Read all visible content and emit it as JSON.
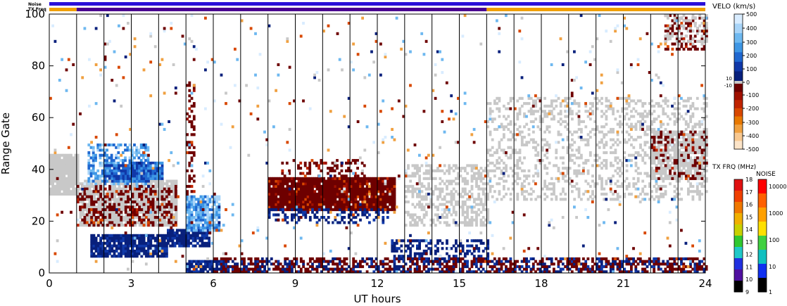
{
  "chart_data": {
    "type": "heatmap",
    "xlabel": "UT hours",
    "ylabel": "Range Gate",
    "xlim": [
      0,
      24
    ],
    "ylim": [
      0,
      100
    ],
    "x_ticks": [
      0,
      3,
      6,
      9,
      12,
      15,
      18,
      21,
      24
    ],
    "y_ticks": [
      0,
      20,
      40,
      60,
      80,
      100
    ],
    "hour_separator_lines": [
      1,
      2,
      3,
      4,
      5,
      6,
      7,
      8,
      9,
      10,
      11,
      12,
      13,
      14,
      15,
      16,
      17,
      18,
      19,
      20,
      21,
      22,
      23
    ],
    "top_bars": [
      {
        "name": "Noise",
        "segments": [
          {
            "start": 0,
            "end": 24,
            "color": "#2a10d8"
          }
        ]
      },
      {
        "name": "TX Freq",
        "segments": [
          {
            "start": 0,
            "end": 1,
            "color": "#f0a000"
          },
          {
            "start": 1,
            "end": 16,
            "color": "#4a0090"
          },
          {
            "start": 16,
            "end": 24,
            "color": "#f0a000"
          }
        ]
      }
    ],
    "velocity_scale": {
      "title": "VELO (km/s)",
      "labels": [
        "500",
        "400",
        "300",
        "200",
        "100",
        "0",
        "-100",
        "-200",
        "-300",
        "-400",
        "-500"
      ],
      "small_labels": [
        "10",
        "-10"
      ],
      "colors_positive": [
        "#d8ecff",
        "#a8d4f8",
        "#6eb8f0",
        "#3e96e4",
        "#2068d0",
        "#1038a8",
        "#08207c"
      ],
      "colors_negative": [
        "#6e0000",
        "#a01000",
        "#c02400",
        "#d84800",
        "#e87800",
        "#f0a040",
        "#f8c890",
        "#fce4c8"
      ],
      "ground_scatter_color": "#c8c8c8"
    },
    "frequency_scale": {
      "title": "TX FRQ (MHz)",
      "labels": [
        "18",
        "17",
        "16",
        "15",
        "14",
        "13",
        "12",
        "11",
        "10",
        "9"
      ],
      "colors": [
        "#e01010",
        "#f04000",
        "#f07800",
        "#f0b000",
        "#c8d000",
        "#30c830",
        "#20c8c8",
        "#2030e0",
        "#5010a0",
        "#000000"
      ]
    },
    "noise_scale": {
      "title": "NOISE",
      "labels": [
        "10000",
        "1000",
        "100",
        "10",
        "1"
      ],
      "colors": [
        "#ff0000",
        "#ff6000",
        "#ffa000",
        "#ffe000",
        "#40d040",
        "#10c0c0",
        "#1030f0",
        "#000000"
      ]
    },
    "regions": [
      {
        "type": "ground",
        "x": [
          0,
          1.0
        ],
        "gate": [
          30,
          46
        ],
        "density": 0.95
      },
      {
        "type": "ground",
        "x": [
          1.1,
          4.6
        ],
        "gate": [
          18,
          36
        ],
        "density": 0.85
      },
      {
        "type": "neg",
        "x": [
          1.0,
          4.6
        ],
        "gate": [
          18,
          34
        ],
        "density": 0.35
      },
      {
        "type": "pos",
        "x": [
          1.4,
          3.6
        ],
        "gate": [
          34,
          50
        ],
        "density": 0.55,
        "shade": "light"
      },
      {
        "type": "pos",
        "x": [
          2.0,
          3.6
        ],
        "gate": [
          35,
          42
        ],
        "density": 0.95,
        "shade": "mid"
      },
      {
        "type": "pos",
        "x": [
          1.5,
          4.3
        ],
        "gate": [
          6,
          15
        ],
        "density": 0.9,
        "shade": "dark"
      },
      {
        "type": "pos",
        "x": [
          4.3,
          5.8
        ],
        "gate": [
          10,
          17
        ],
        "density": 0.9,
        "shade": "dark"
      },
      {
        "type": "pos",
        "x": [
          5.0,
          6.2
        ],
        "gate": [
          16,
          30
        ],
        "density": 0.85,
        "shade": "light"
      },
      {
        "type": "pos",
        "x": [
          3.0,
          4.1
        ],
        "gate": [
          36,
          43
        ],
        "density": 0.9,
        "shade": "mid"
      },
      {
        "type": "pos",
        "x": [
          5.0,
          6.5
        ],
        "gate": [
          0,
          5
        ],
        "density": 0.8,
        "shade": "dark"
      },
      {
        "type": "neg",
        "x": [
          5.0,
          5.3
        ],
        "gate": [
          30,
          75
        ],
        "density": 0.35
      },
      {
        "type": "neg",
        "x": [
          8.0,
          12.6
        ],
        "gate": [
          24,
          37
        ],
        "density": 0.97
      },
      {
        "type": "neg",
        "x": [
          8.4,
          11.5
        ],
        "gate": [
          37,
          44
        ],
        "density": 0.25
      },
      {
        "type": "pos",
        "x": [
          8.0,
          12.4
        ],
        "gate": [
          19,
          25
        ],
        "density": 0.35,
        "shade": "dark"
      },
      {
        "type": "pos",
        "x": [
          12.5,
          16.0
        ],
        "gate": [
          4,
          13
        ],
        "density": 0.45,
        "shade": "dark"
      },
      {
        "type": "ground",
        "x": [
          13.0,
          16.0
        ],
        "gate": [
          18,
          42
        ],
        "density": 0.45
      },
      {
        "type": "ground",
        "x": [
          16.0,
          24.0
        ],
        "gate": [
          28,
          68
        ],
        "density": 0.28
      },
      {
        "type": "ground",
        "x": [
          22.0,
          24.0
        ],
        "gate": [
          36,
          55
        ],
        "density": 0.75
      },
      {
        "type": "neg",
        "x": [
          22.0,
          24.0
        ],
        "gate": [
          36,
          55
        ],
        "density": 0.2
      },
      {
        "type": "neg",
        "x": [
          22.5,
          24.0
        ],
        "gate": [
          86,
          100
        ],
        "density": 0.3
      },
      {
        "type": "ground",
        "x": [
          22.5,
          24.0
        ],
        "gate": [
          88,
          100
        ],
        "density": 0.3
      },
      {
        "type": "mixed_low",
        "x": [
          6.0,
          24.0
        ],
        "gate": [
          0,
          6
        ],
        "density": 0.6
      },
      {
        "type": "sparse",
        "x": [
          0,
          24
        ],
        "gate": [
          0,
          100
        ],
        "density": 0.02
      }
    ]
  }
}
